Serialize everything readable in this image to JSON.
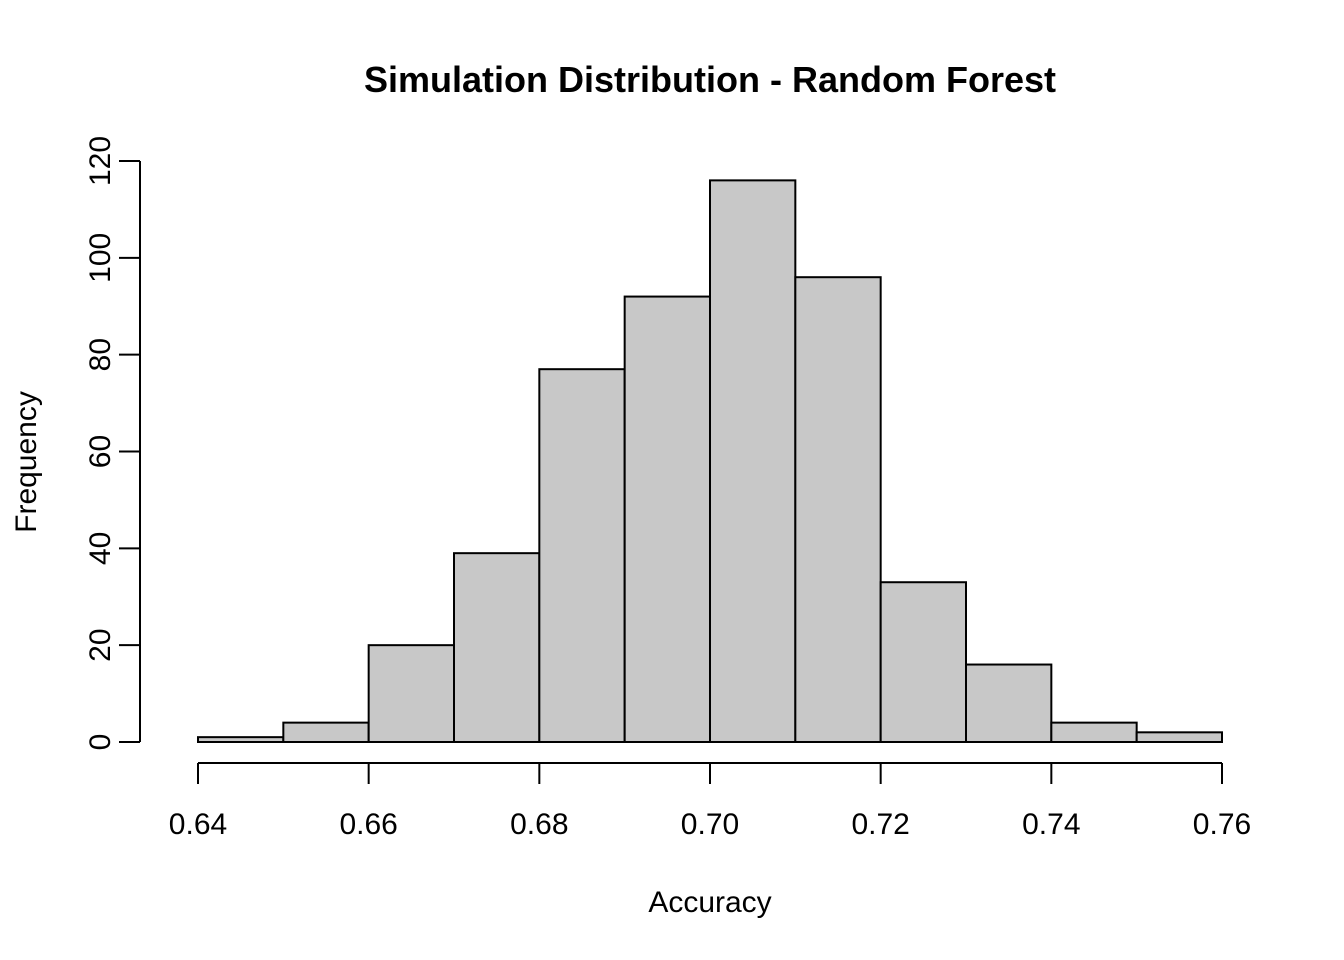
{
  "chart_data": {
    "type": "bar",
    "subtype": "histogram",
    "title": "Simulation Distribution - Random Forest",
    "xlabel": "Accuracy",
    "ylabel": "Frequency",
    "bin_edges": [
      0.64,
      0.65,
      0.66,
      0.67,
      0.68,
      0.69,
      0.7,
      0.71,
      0.72,
      0.73,
      0.74,
      0.75,
      0.76
    ],
    "values": [
      1,
      4,
      20,
      39,
      77,
      92,
      116,
      96,
      33,
      16,
      4,
      2
    ],
    "xlim": [
      0.64,
      0.76
    ],
    "ylim": [
      0,
      120
    ],
    "x_ticks": [
      "0.64",
      "0.66",
      "0.68",
      "0.70",
      "0.72",
      "0.74",
      "0.76"
    ],
    "y_ticks": [
      "0",
      "20",
      "40",
      "60",
      "80",
      "100",
      "120"
    ],
    "grid": false,
    "legend": "none",
    "colors": {
      "bar_fill": "#c8c8c8",
      "bar_edge": "#000000",
      "axis": "#000000",
      "background": "#ffffff"
    }
  }
}
